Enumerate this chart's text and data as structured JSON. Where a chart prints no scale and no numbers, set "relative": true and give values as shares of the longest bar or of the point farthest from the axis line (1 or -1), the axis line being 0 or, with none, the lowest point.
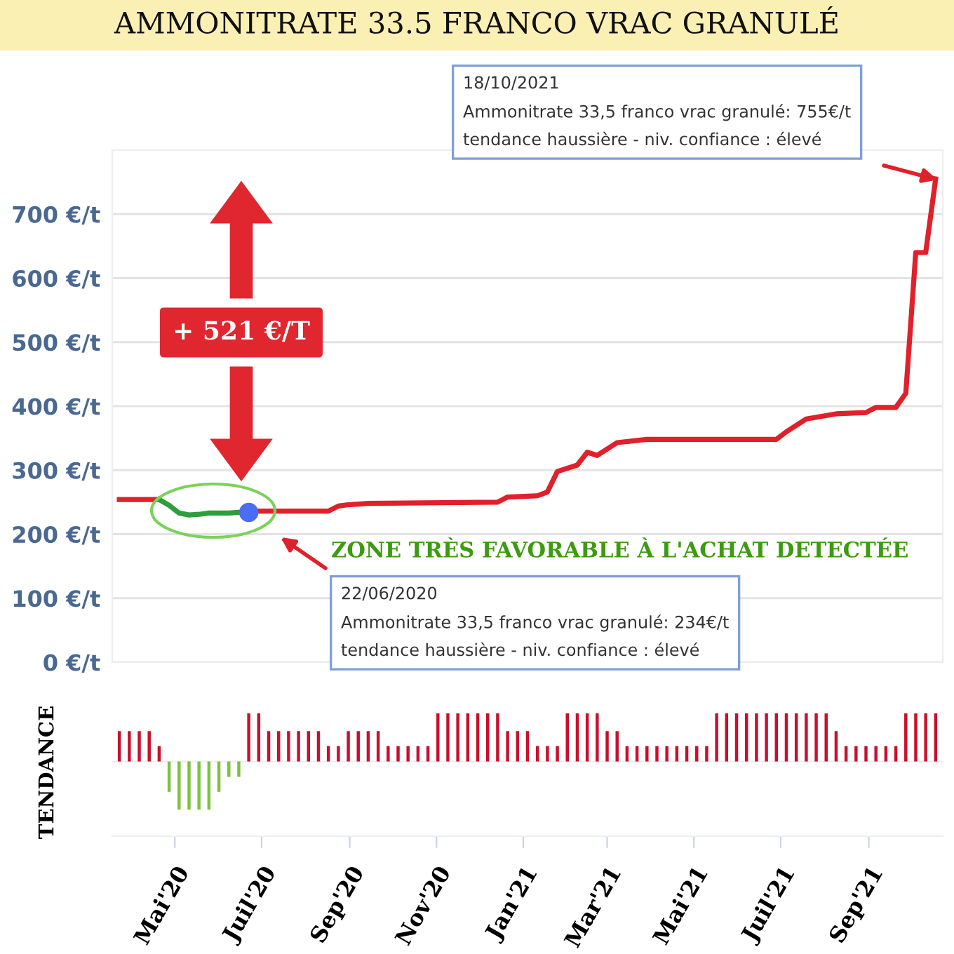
{
  "chart_data": [
    {
      "type": "line",
      "title": "AMMONITRATE 33.5 FRANCO VRAC GRANULÉ",
      "series": [
        {
          "color": "#e0202b",
          "x": [
            "2020-03-23",
            "2020-04-20",
            "2020-05-25",
            "2020-06-22",
            "2020-06-29",
            "2020-08-17",
            "2020-08-24",
            "2020-08-31",
            "2020-09-14",
            "2020-12-14",
            "2020-12-21",
            "2021-01-11",
            "2021-01-18",
            "2021-01-25",
            "2021-02-08",
            "2021-02-15",
            "2021-02-22",
            "2021-03-08",
            "2021-03-29",
            "2021-06-28",
            "2021-07-05",
            "2021-07-19",
            "2021-08-09",
            "2021-08-30",
            "2021-09-06",
            "2021-09-20",
            "2021-09-27",
            "2021-10-04",
            "2021-10-11",
            "2021-10-18"
          ],
          "values": [
            254,
            254,
            null,
            234,
            236,
            236,
            244,
            246,
            248,
            250,
            258,
            260,
            266,
            298,
            308,
            328,
            323,
            343,
            348,
            348,
            360,
            380,
            388,
            390,
            398,
            398,
            420,
            640,
            640,
            755
          ]
        },
        {
          "color": "#2e9e3a",
          "x": [
            "2020-04-20",
            "2020-04-27",
            "2020-05-04",
            "2020-05-11",
            "2020-05-18",
            "2020-05-25",
            "2020-06-01",
            "2020-06-08",
            "2020-06-15",
            "2020-06-22"
          ],
          "values": [
            254,
            245,
            233,
            230,
            231,
            233,
            233,
            233,
            234,
            234
          ]
        },
        {
          "type": "scatter",
          "color": "#4a6cf7",
          "x": [
            "2020-06-22"
          ],
          "values": [
            234
          ]
        }
      ],
      "xlim": [
        "2020-03-18",
        "2021-10-23"
      ],
      "ylim": [
        0,
        800
      ],
      "yticks": [
        {
          "value": 0,
          "label": "0 €/t"
        },
        {
          "value": 100,
          "label": "100 €/t"
        },
        {
          "value": 200,
          "label": "200 €/t"
        },
        {
          "value": 300,
          "label": "300 €/t"
        },
        {
          "value": 400,
          "label": "400 €/t"
        },
        {
          "value": 500,
          "label": "500 €/t"
        },
        {
          "value": 600,
          "label": "600 €/t"
        },
        {
          "value": 700,
          "label": "700 €/t"
        }
      ],
      "tick_labels": "y",
      "grid": "y",
      "annotations": [
        "18/10/2021\nAmmonitrate 33,5 franco vrac granulé: 755€/t\ntendance haussière - niv. confiance : élevé",
        "22/06/2020\nAmmonitrate 33,5 franco vrac granulé: 234€/t\ntendance haussière - niv. confiance : élevé",
        "+ 521 €/T",
        "ZONE TRÈS FAVORABLE À L'ACHAT DETECTÉE"
      ]
    },
    {
      "type": "bar",
      "ylabel": "TENDANCE",
      "relative": true,
      "x": [
        "2020-03-23",
        "2020-03-30",
        "2020-04-06",
        "2020-04-13",
        "2020-04-20",
        "2020-04-27",
        "2020-05-04",
        "2020-05-11",
        "2020-05-18",
        "2020-05-25",
        "2020-06-01",
        "2020-06-08",
        "2020-06-15",
        "2020-06-22",
        "2020-06-29",
        "2020-07-06",
        "2020-07-13",
        "2020-07-20",
        "2020-07-27",
        "2020-08-03",
        "2020-08-10",
        "2020-08-17",
        "2020-08-24",
        "2020-08-31",
        "2020-09-07",
        "2020-09-14",
        "2020-09-21",
        "2020-09-28",
        "2020-10-05",
        "2020-10-12",
        "2020-10-19",
        "2020-10-26",
        "2020-11-02",
        "2020-11-09",
        "2020-11-16",
        "2020-11-23",
        "2020-11-30",
        "2020-12-07",
        "2020-12-14",
        "2020-12-21",
        "2020-12-28",
        "2021-01-04",
        "2021-01-11",
        "2021-01-18",
        "2021-01-25",
        "2021-02-01",
        "2021-02-08",
        "2021-02-15",
        "2021-02-22",
        "2021-03-01",
        "2021-03-08",
        "2021-03-15",
        "2021-03-22",
        "2021-03-29",
        "2021-04-05",
        "2021-04-12",
        "2021-04-19",
        "2021-04-26",
        "2021-05-03",
        "2021-05-10",
        "2021-05-17",
        "2021-05-24",
        "2021-05-31",
        "2021-06-07",
        "2021-06-14",
        "2021-06-21",
        "2021-06-28",
        "2021-07-05",
        "2021-07-12",
        "2021-07-19",
        "2021-07-26",
        "2021-08-02",
        "2021-08-09",
        "2021-08-16",
        "2021-08-23",
        "2021-08-30",
        "2021-09-06",
        "2021-09-13",
        "2021-09-20",
        "2021-09-27",
        "2021-10-04",
        "2021-10-11",
        "2021-10-18"
      ],
      "series": [
        {
          "color": "#c8102e",
          "values": [
            0.63,
            0.63,
            0.63,
            0.63,
            0.32,
            null,
            null,
            null,
            null,
            null,
            null,
            null,
            null,
            1,
            1,
            0.63,
            0.63,
            0.63,
            0.63,
            0.63,
            0.63,
            0.32,
            0.32,
            0.63,
            0.63,
            0.63,
            0.63,
            0.32,
            0.32,
            0.32,
            0.32,
            0.32,
            1,
            1,
            1,
            1,
            1,
            1,
            1,
            0.63,
            0.63,
            0.63,
            0.32,
            0.32,
            0.32,
            1,
            1,
            1,
            1,
            0.63,
            0.63,
            0.32,
            0.32,
            0.32,
            0.32,
            0.32,
            0.32,
            0.32,
            0.32,
            0.32,
            1,
            1,
            1,
            1,
            1,
            1,
            1,
            1,
            1,
            1,
            1,
            1,
            0.63,
            0.32,
            0.32,
            0.32,
            0.32,
            0.32,
            0.32,
            1,
            1,
            1,
            1
          ]
        },
        {
          "color": "#7cc242",
          "values": [
            null,
            null,
            null,
            null,
            null,
            -0.63,
            -1,
            -1,
            -1,
            -1,
            -0.63,
            -0.32,
            -0.32,
            null,
            null,
            null,
            null,
            null,
            null,
            null,
            null,
            null,
            null,
            null,
            null,
            null,
            null,
            null,
            null,
            null,
            null,
            null,
            null,
            null,
            null,
            null,
            null,
            null,
            null,
            null,
            null,
            null,
            null,
            null,
            null,
            null,
            null,
            null,
            null,
            null,
            null,
            null,
            null,
            null,
            null,
            null,
            null,
            null,
            null,
            null,
            null,
            null,
            null,
            null,
            null,
            null,
            null,
            null,
            null,
            null,
            null,
            null,
            null,
            null,
            null,
            null,
            null,
            null,
            null,
            null,
            null,
            null,
            null
          ]
        }
      ],
      "xlim": [
        "2020-03-18",
        "2021-10-23"
      ],
      "xticks": [
        {
          "value": "2020-05-01",
          "label": "Mai'20"
        },
        {
          "value": "2020-07-01",
          "label": "Juil'20"
        },
        {
          "value": "2020-09-01",
          "label": "Sep'20"
        },
        {
          "value": "2020-11-01",
          "label": "Nov'20"
        },
        {
          "value": "2021-01-01",
          "label": "Jan'21"
        },
        {
          "value": "2021-03-01",
          "label": "Mar'21"
        },
        {
          "value": "2021-05-01",
          "label": "Mai'21"
        },
        {
          "value": "2021-07-01",
          "label": "Juil'21"
        },
        {
          "value": "2021-09-01",
          "label": "Sep'21"
        }
      ],
      "tick_labels": "x"
    }
  ]
}
